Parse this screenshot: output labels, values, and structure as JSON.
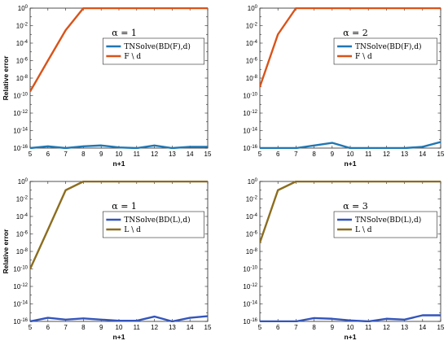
{
  "chart_data": [
    {
      "type": "line",
      "annotation": "α = 1",
      "xlabel": "n+1",
      "ylabel": "Relative error",
      "yscale": "log",
      "xlim": [
        5,
        15
      ],
      "ylim": [
        1e-16,
        1
      ],
      "x": [
        5,
        6,
        7,
        8,
        9,
        10,
        11,
        12,
        13,
        14,
        15
      ],
      "xticklabels": [
        "5",
        "6",
        "7",
        "8",
        "9",
        "10",
        "11",
        "12",
        "13",
        "14",
        "15"
      ],
      "yticklabels": [
        "10^-16",
        "10^-14",
        "10^-12",
        "10^-10",
        "10^-8",
        "10^-6",
        "10^-4",
        "10^-2",
        "10^0"
      ],
      "legend_position": "upper-right",
      "series": [
        {
          "name": "TNSolve(BD(F),d)",
          "color": "#1f77b4",
          "values": [
            1e-16,
            1.6e-16,
            1e-16,
            1.6e-16,
            2e-16,
            1.2e-16,
            1e-16,
            2e-16,
            1e-16,
            1.4e-16,
            1.4e-16
          ]
        },
        {
          "name": "F \\ d",
          "color": "#d95319",
          "values": [
            3e-10,
            1e-06,
            0.003,
            1,
            1,
            1,
            1,
            1,
            1,
            1,
            1
          ]
        }
      ]
    },
    {
      "type": "line",
      "annotation": "α = 2",
      "xlabel": "n+1",
      "ylabel": "",
      "yscale": "log",
      "xlim": [
        5,
        15
      ],
      "ylim": [
        1e-16,
        1
      ],
      "x": [
        5,
        6,
        7,
        8,
        9,
        10,
        11,
        12,
        13,
        14,
        15
      ],
      "xticklabels": [
        "5",
        "6",
        "7",
        "8",
        "9",
        "10",
        "11",
        "12",
        "13",
        "14",
        "15"
      ],
      "yticklabels": [
        "10^-16",
        "10^-14",
        "10^-12",
        "10^-10",
        "10^-8",
        "10^-6",
        "10^-4",
        "10^-2",
        "10^0"
      ],
      "legend_position": "upper-right",
      "series": [
        {
          "name": "TNSolve(BD(F),d)",
          "color": "#1f77b4",
          "values": [
            1e-16,
            1e-16,
            1e-16,
            2e-16,
            4e-16,
            1e-16,
            1e-16,
            1e-16,
            1e-16,
            1.4e-16,
            5e-16
          ]
        },
        {
          "name": "F \\ d",
          "color": "#d95319",
          "values": [
            1e-09,
            0.001,
            1,
            1,
            1,
            1,
            1,
            1,
            1,
            1,
            1
          ]
        }
      ]
    },
    {
      "type": "line",
      "annotation": "α = 1",
      "xlabel": "n+1",
      "ylabel": "Relative error",
      "yscale": "log",
      "xlim": [
        5,
        15
      ],
      "ylim": [
        1e-16,
        1
      ],
      "x": [
        5,
        6,
        7,
        8,
        9,
        10,
        11,
        12,
        13,
        14,
        15
      ],
      "xticklabels": [
        "5",
        "6",
        "7",
        "8",
        "9",
        "10",
        "11",
        "12",
        "13",
        "14",
        "15"
      ],
      "yticklabels": [
        "10^-16",
        "10^-14",
        "10^-12",
        "10^-10",
        "10^-8",
        "10^-6",
        "10^-4",
        "10^-2",
        "10^0"
      ],
      "legend_position": "upper-right",
      "series": [
        {
          "name": "TNSolve(BD(L),d)",
          "color": "#3355bb",
          "values": [
            1e-16,
            2.6e-16,
            1.6e-16,
            2.2e-16,
            1.6e-16,
            1.2e-16,
            1.2e-16,
            3.6e-16,
            1e-16,
            2.6e-16,
            4e-16
          ]
        },
        {
          "name": "L \\ d",
          "color": "#8c6d1f",
          "values": [
            1e-10,
            3e-06,
            0.1,
            1,
            1,
            1,
            1,
            1,
            1,
            1,
            1
          ]
        }
      ]
    },
    {
      "type": "line",
      "annotation": "α = 3",
      "xlabel": "n+1",
      "ylabel": "",
      "yscale": "log",
      "xlim": [
        5,
        15
      ],
      "ylim": [
        1e-16,
        1
      ],
      "x": [
        5,
        6,
        7,
        8,
        9,
        10,
        11,
        12,
        13,
        14,
        15
      ],
      "xticklabels": [
        "5",
        "6",
        "7",
        "8",
        "9",
        "10",
        "11",
        "12",
        "13",
        "14",
        "15"
      ],
      "yticklabels": [
        "10^-16",
        "10^-14",
        "10^-12",
        "10^-10",
        "10^-8",
        "10^-6",
        "10^-4",
        "10^-2",
        "10^0"
      ],
      "legend_position": "upper-right",
      "series": [
        {
          "name": "TNSolve(BD(L),d)",
          "color": "#3355bb",
          "values": [
            1e-16,
            1e-16,
            1e-16,
            2.4e-16,
            2e-16,
            1.3e-16,
            1e-16,
            2e-16,
            1.6e-16,
            5e-16,
            5e-16
          ]
        },
        {
          "name": "L \\ d",
          "color": "#8c6d1f",
          "values": [
            1e-07,
            0.1,
            1,
            1,
            1,
            1,
            1,
            1,
            1,
            1,
            1
          ]
        }
      ]
    }
  ]
}
